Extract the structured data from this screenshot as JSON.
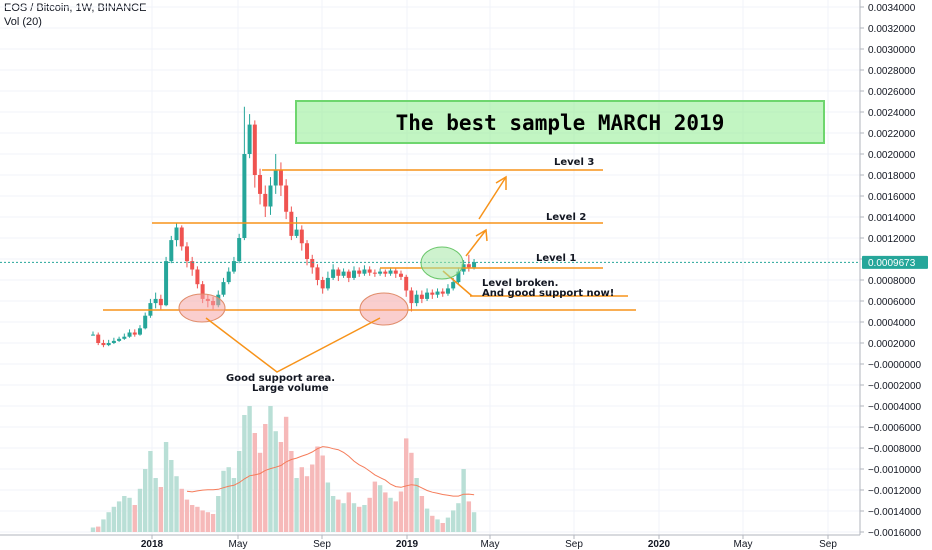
{
  "header": {
    "symbol_line": "EOS / Bitcoin, 1W, BINANCE",
    "volume_line": "Vol (20)"
  },
  "colors": {
    "up": "#26a69a",
    "down": "#ef5350",
    "volume_up": "#b9dfd6",
    "volume_down": "#f6b9b9",
    "volume_ma": "#f57c5a",
    "annotation": "#f7931a",
    "title_box": "#99ee99",
    "current_price": "#26a69a"
  },
  "chart_data": {
    "type": "candlestick",
    "title": "",
    "interval": "1W",
    "exchange": "BINANCE",
    "x_ticks": [
      "2018",
      "May",
      "Sep",
      "2019",
      "May",
      "Sep",
      "2020",
      "May",
      "Sep"
    ],
    "y_ticks": [
      "0.0034000",
      "0.0032000",
      "0.0030000",
      "0.0028000",
      "0.0026000",
      "0.0024000",
      "0.0022000",
      "0.0020000",
      "0.0018000",
      "0.0016000",
      "0.0014000",
      "0.0012000",
      "0.0010000",
      "0.0008000",
      "0.0006000",
      "0.0004000",
      "0.0002000",
      "−0.0000000",
      "−0.0002000",
      "−0.0004000",
      "−0.0006000",
      "−0.0008000",
      "−0.0010000",
      "−0.0012000",
      "−0.0014000",
      "−0.0016000"
    ],
    "ylim": [
      -0.0016,
      0.0034
    ],
    "current_price": "0.0009673",
    "candles": [
      [
        0.00028,
        0.00028,
        0.00031,
        0.00027
      ],
      [
        0.00028,
        0.0002,
        0.0003,
        0.00018
      ],
      [
        0.0002,
        0.00018,
        0.00023,
        0.00016
      ],
      [
        0.00018,
        0.0002,
        0.00023,
        0.00017
      ],
      [
        0.0002,
        0.00022,
        0.00025,
        0.00019
      ],
      [
        0.00022,
        0.00024,
        0.00026,
        0.00021
      ],
      [
        0.00024,
        0.00026,
        0.00029,
        0.00023
      ],
      [
        0.00026,
        0.0003,
        0.00033,
        0.00025
      ],
      [
        0.0003,
        0.00028,
        0.00033,
        0.00026
      ],
      [
        0.00028,
        0.00034,
        0.00037,
        0.00027
      ],
      [
        0.00034,
        0.00046,
        0.00049,
        0.00033
      ],
      [
        0.00046,
        0.00058,
        0.00062,
        0.00044
      ],
      [
        0.00058,
        0.00062,
        0.00068,
        0.00053
      ],
      [
        0.00062,
        0.00056,
        0.00066,
        0.00052
      ],
      [
        0.00056,
        0.00098,
        0.00102,
        0.00055
      ],
      [
        0.00098,
        0.00118,
        0.00122,
        0.00096
      ],
      [
        0.00118,
        0.0013,
        0.00134,
        0.00112
      ],
      [
        0.0013,
        0.00112,
        0.00132,
        0.00108
      ],
      [
        0.00112,
        0.00098,
        0.00116,
        0.00092
      ],
      [
        0.00098,
        0.0009,
        0.00102,
        0.00084
      ],
      [
        0.0009,
        0.00076,
        0.00093,
        0.00072
      ],
      [
        0.00076,
        0.00062,
        0.00079,
        0.00058
      ],
      [
        0.00062,
        0.0006,
        0.00066,
        0.00054
      ],
      [
        0.0006,
        0.00056,
        0.00064,
        0.00052
      ],
      [
        0.00056,
        0.00066,
        0.0007,
        0.00054
      ],
      [
        0.00066,
        0.00078,
        0.00082,
        0.00064
      ],
      [
        0.00078,
        0.00088,
        0.00092,
        0.00076
      ],
      [
        0.00088,
        0.00098,
        0.00102,
        0.00086
      ],
      [
        0.00098,
        0.0012,
        0.00124,
        0.00096
      ],
      [
        0.0012,
        0.002,
        0.00245,
        0.00118
      ],
      [
        0.002,
        0.00228,
        0.00238,
        0.00196
      ],
      [
        0.00228,
        0.0018,
        0.00232,
        0.00168
      ],
      [
        0.0018,
        0.00162,
        0.00186,
        0.00152
      ],
      [
        0.00162,
        0.0015,
        0.0017,
        0.0014
      ],
      [
        0.0015,
        0.0017,
        0.00178,
        0.00142
      ],
      [
        0.0017,
        0.00185,
        0.002,
        0.00162
      ],
      [
        0.00185,
        0.0017,
        0.00192,
        0.0016
      ],
      [
        0.0017,
        0.00145,
        0.00176,
        0.00138
      ],
      [
        0.00145,
        0.00122,
        0.0015,
        0.00118
      ],
      [
        0.00122,
        0.00128,
        0.0014,
        0.0012
      ],
      [
        0.00128,
        0.00115,
        0.00132,
        0.00108
      ],
      [
        0.00115,
        0.001,
        0.00118,
        0.00094
      ],
      [
        0.001,
        0.00092,
        0.00104,
        0.00086
      ],
      [
        0.00092,
        0.0008,
        0.00095,
        0.00075
      ],
      [
        0.0008,
        0.00072,
        0.00083,
        0.00067
      ],
      [
        0.00072,
        0.00082,
        0.00088,
        0.0007
      ],
      [
        0.00082,
        0.0009,
        0.00095,
        0.0008
      ],
      [
        0.0009,
        0.00084,
        0.00092,
        0.00079
      ],
      [
        0.00084,
        0.00088,
        0.00091,
        0.00082
      ],
      [
        0.00088,
        0.00082,
        0.0009,
        0.00078
      ],
      [
        0.00082,
        0.00089,
        0.00093,
        0.0008
      ],
      [
        0.00089,
        0.00086,
        0.00092,
        0.00083
      ],
      [
        0.00086,
        0.0009,
        0.00094,
        0.00084
      ],
      [
        0.0009,
        0.00087,
        0.00093,
        0.00084
      ],
      [
        0.00087,
        0.00086,
        0.0009,
        0.00083
      ],
      [
        0.00086,
        0.00088,
        0.00091,
        0.00084
      ],
      [
        0.00088,
        0.00086,
        0.0009,
        0.00083
      ],
      [
        0.00086,
        0.00089,
        0.00092,
        0.00084
      ],
      [
        0.00089,
        0.00086,
        0.00091,
        0.00082
      ],
      [
        0.00086,
        0.00083,
        0.00089,
        0.0008
      ],
      [
        0.00083,
        0.0007,
        0.00085,
        0.00064
      ],
      [
        0.0007,
        0.00058,
        0.00073,
        0.0005
      ],
      [
        0.00058,
        0.00066,
        0.0007,
        0.00055
      ],
      [
        0.00066,
        0.00062,
        0.0007,
        0.00058
      ],
      [
        0.00062,
        0.00068,
        0.00072,
        0.0006
      ],
      [
        0.00068,
        0.00066,
        0.00071,
        0.00062
      ],
      [
        0.00066,
        0.00069,
        0.00072,
        0.00063
      ],
      [
        0.00069,
        0.00067,
        0.00072,
        0.00064
      ],
      [
        0.00067,
        0.00072,
        0.00076,
        0.00065
      ],
      [
        0.00072,
        0.00078,
        0.00082,
        0.0007
      ],
      [
        0.00078,
        0.00088,
        0.00092,
        0.00076
      ],
      [
        0.00088,
        0.00095,
        0.00099,
        0.00085
      ],
      [
        0.00095,
        0.00092,
        0.00104,
        0.00088
      ],
      [
        0.00092,
        0.00097,
        0.001,
        0.0009
      ]
    ],
    "volume": [
      {
        "v": 5,
        "up": true
      },
      {
        "v": 6,
        "up": false
      },
      {
        "v": 14,
        "up": true
      },
      {
        "v": 22,
        "up": true
      },
      {
        "v": 28,
        "up": true
      },
      {
        "v": 34,
        "up": true
      },
      {
        "v": 40,
        "up": true
      },
      {
        "v": 38,
        "up": true
      },
      {
        "v": 30,
        "up": false
      },
      {
        "v": 48,
        "up": true
      },
      {
        "v": 70,
        "up": true
      },
      {
        "v": 90,
        "up": true
      },
      {
        "v": 60,
        "up": true
      },
      {
        "v": 50,
        "up": false
      },
      {
        "v": 100,
        "up": true
      },
      {
        "v": 80,
        "up": true
      },
      {
        "v": 62,
        "up": true
      },
      {
        "v": 48,
        "up": false
      },
      {
        "v": 36,
        "up": false
      },
      {
        "v": 30,
        "up": false
      },
      {
        "v": 28,
        "up": false
      },
      {
        "v": 24,
        "up": false
      },
      {
        "v": 22,
        "up": false
      },
      {
        "v": 20,
        "up": false
      },
      {
        "v": 40,
        "up": true
      },
      {
        "v": 68,
        "up": true
      },
      {
        "v": 72,
        "up": true
      },
      {
        "v": 60,
        "up": true
      },
      {
        "v": 90,
        "up": true
      },
      {
        "v": 130,
        "up": true
      },
      {
        "v": 140,
        "up": true
      },
      {
        "v": 110,
        "up": false
      },
      {
        "v": 88,
        "up": false
      },
      {
        "v": 120,
        "up": false
      },
      {
        "v": 140,
        "up": true
      },
      {
        "v": 112,
        "up": true
      },
      {
        "v": 100,
        "up": false
      },
      {
        "v": 128,
        "up": false
      },
      {
        "v": 90,
        "up": false
      },
      {
        "v": 60,
        "up": true
      },
      {
        "v": 72,
        "up": false
      },
      {
        "v": 62,
        "up": false
      },
      {
        "v": 75,
        "up": false
      },
      {
        "v": 95,
        "up": false
      },
      {
        "v": 85,
        "up": false
      },
      {
        "v": 55,
        "up": true
      },
      {
        "v": 40,
        "up": true
      },
      {
        "v": 36,
        "up": false
      },
      {
        "v": 32,
        "up": true
      },
      {
        "v": 44,
        "up": false
      },
      {
        "v": 32,
        "up": true
      },
      {
        "v": 28,
        "up": false
      },
      {
        "v": 30,
        "up": true
      },
      {
        "v": 38,
        "up": false
      },
      {
        "v": 56,
        "up": false
      },
      {
        "v": 52,
        "up": true
      },
      {
        "v": 44,
        "up": false
      },
      {
        "v": 38,
        "up": true
      },
      {
        "v": 34,
        "up": false
      },
      {
        "v": 45,
        "up": false
      },
      {
        "v": 104,
        "up": false
      },
      {
        "v": 88,
        "up": false
      },
      {
        "v": 60,
        "up": true
      },
      {
        "v": 40,
        "up": false
      },
      {
        "v": 26,
        "up": true
      },
      {
        "v": 18,
        "up": false
      },
      {
        "v": 14,
        "up": true
      },
      {
        "v": 10,
        "up": false
      },
      {
        "v": 16,
        "up": true
      },
      {
        "v": 24,
        "up": true
      },
      {
        "v": 32,
        "up": true
      },
      {
        "v": 70,
        "up": true
      },
      {
        "v": 34,
        "up": false
      },
      {
        "v": 22,
        "up": true
      }
    ],
    "annotations": {
      "title_box": "The best sample MARCH 2019",
      "level_1": "Level 1",
      "level_2": "Level 2",
      "level_3": "Level 3",
      "breakout_line1": "Level broken.",
      "breakout_line2": "And good support now!",
      "support_line1": "Good support area.",
      "support_line2": "Large volume"
    }
  }
}
